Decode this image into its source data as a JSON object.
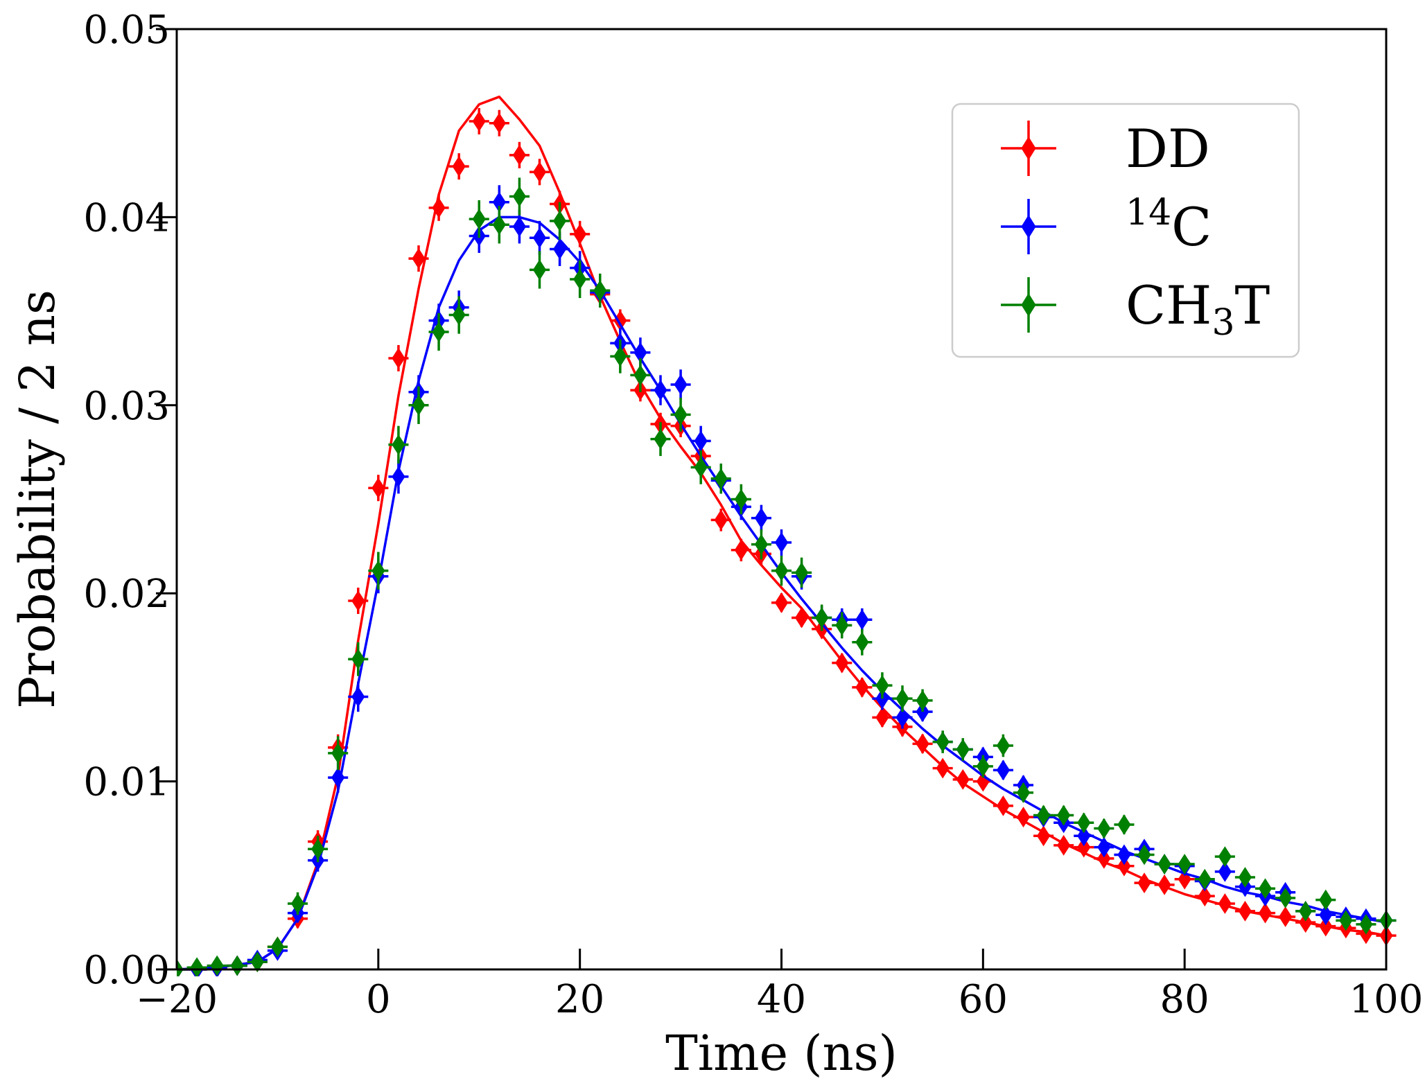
{
  "chart_data": {
    "type": "scatter",
    "title": "",
    "xlabel": "Time (ns)",
    "ylabel": "Probability / 2 ns",
    "xlim": [
      -20,
      100
    ],
    "ylim": [
      0.0,
      0.05
    ],
    "xticks": [
      "−20",
      "0",
      "20",
      "40",
      "60",
      "80",
      "100"
    ],
    "xtick_values": [
      -20,
      0,
      20,
      40,
      60,
      80,
      100
    ],
    "yticks": [
      "0.00",
      "0.01",
      "0.02",
      "0.03",
      "0.04",
      "0.05"
    ],
    "ytick_values": [
      0.0,
      0.01,
      0.02,
      0.03,
      0.04,
      0.05
    ],
    "grid": false,
    "legend_position": "upper-right",
    "marker": "thin-diamond",
    "series": [
      {
        "name": "DD",
        "legend_label": {
          "base": "DD",
          "sup": "",
          "sub": "",
          "post": ""
        },
        "color": "#ff0000",
        "x": [
          -20,
          -18,
          -16,
          -14,
          -12,
          -10,
          -8,
          -6,
          -4,
          -2,
          0,
          2,
          4,
          6,
          8,
          10,
          12,
          14,
          16,
          18,
          20,
          22,
          24,
          26,
          28,
          30,
          32,
          34,
          36,
          38,
          40,
          42,
          44,
          46,
          48,
          50,
          52,
          54,
          56,
          58,
          60,
          62,
          64,
          66,
          68,
          70,
          72,
          74,
          76,
          78,
          80,
          82,
          84,
          86,
          88,
          90,
          92,
          94,
          96,
          98,
          100
        ],
        "y": [
          0.0,
          0.0,
          0.0001,
          0.0002,
          0.0004,
          0.0012,
          0.0027,
          0.0068,
          0.0118,
          0.0196,
          0.0256,
          0.0325,
          0.0378,
          0.0405,
          0.0427,
          0.0451,
          0.045,
          0.0433,
          0.0424,
          0.0407,
          0.0391,
          0.0359,
          0.0345,
          0.0308,
          0.029,
          0.0289,
          0.0273,
          0.0239,
          0.0223,
          0.0221,
          0.0195,
          0.0187,
          0.0181,
          0.0163,
          0.015,
          0.0134,
          0.0129,
          0.012,
          0.0107,
          0.0101,
          0.01,
          0.0087,
          0.0081,
          0.0071,
          0.0066,
          0.0065,
          0.0059,
          0.0055,
          0.0046,
          0.0045,
          0.0048,
          0.0039,
          0.0035,
          0.0031,
          0.003,
          0.0028,
          0.0025,
          0.0023,
          0.0022,
          0.0019,
          0.0018
        ],
        "yerr": [
          0.0002,
          0.0002,
          0.0002,
          0.0002,
          0.0003,
          0.0004,
          0.0005,
          0.0006,
          0.0007,
          0.0007,
          0.0007,
          0.0007,
          0.0007,
          0.0007,
          0.0007,
          0.0007,
          0.0007,
          0.0007,
          0.0007,
          0.0007,
          0.0007,
          0.0007,
          0.0006,
          0.0006,
          0.0006,
          0.0006,
          0.0006,
          0.0006,
          0.0006,
          0.0006,
          0.0005,
          0.0005,
          0.0005,
          0.0005,
          0.0005,
          0.0005,
          0.0005,
          0.0005,
          0.0004,
          0.0004,
          0.0004,
          0.0004,
          0.0004,
          0.0004,
          0.0004,
          0.0004,
          0.0004,
          0.0004,
          0.0003,
          0.0003,
          0.0003,
          0.0003,
          0.0003,
          0.0003,
          0.0003,
          0.0003,
          0.0003,
          0.0003,
          0.0003,
          0.0003,
          0.0003
        ],
        "fit": {
          "x": [
            -20,
            -16,
            -12,
            -10,
            -8,
            -6,
            -4,
            -2,
            0,
            2,
            4,
            6,
            8,
            10,
            12,
            14,
            16,
            18,
            20,
            22,
            24,
            26,
            28,
            30,
            32,
            34,
            36,
            38,
            40,
            42,
            44,
            46,
            48,
            50,
            52,
            54,
            56,
            58,
            60,
            62,
            64,
            66,
            68,
            70,
            72,
            74,
            76,
            78,
            80,
            82,
            84,
            86,
            88,
            90,
            92,
            94,
            96,
            98,
            100
          ],
          "y": [
            0.0,
            0.0001,
            0.0004,
            0.0011,
            0.0027,
            0.0057,
            0.0103,
            0.0175,
            0.0237,
            0.0305,
            0.0362,
            0.0412,
            0.0446,
            0.046,
            0.0464,
            0.0452,
            0.0438,
            0.0413,
            0.0386,
            0.0358,
            0.0334,
            0.0311,
            0.0293,
            0.0278,
            0.0264,
            0.0247,
            0.0228,
            0.0215,
            0.0203,
            0.0192,
            0.0178,
            0.0164,
            0.0151,
            0.0139,
            0.0128,
            0.0118,
            0.0108,
            0.0099,
            0.0092,
            0.0085,
            0.0079,
            0.0073,
            0.0067,
            0.0062,
            0.0057,
            0.0053,
            0.0048,
            0.0044,
            0.004,
            0.0037,
            0.0034,
            0.0031,
            0.0029,
            0.0027,
            0.0025,
            0.0023,
            0.0021,
            0.002,
            0.0018
          ]
        }
      },
      {
        "name": "14C",
        "legend_label": {
          "base": "",
          "sup": "14",
          "sub": "",
          "post": "C"
        },
        "color": "#0000ff",
        "x": [
          -20,
          -18,
          -16,
          -14,
          -12,
          -10,
          -8,
          -6,
          -4,
          -2,
          0,
          2,
          4,
          6,
          8,
          10,
          12,
          14,
          16,
          18,
          20,
          22,
          24,
          26,
          28,
          30,
          32,
          34,
          36,
          38,
          40,
          42,
          44,
          46,
          48,
          50,
          52,
          54,
          56,
          58,
          60,
          62,
          64,
          66,
          68,
          70,
          72,
          74,
          76,
          78,
          80,
          82,
          84,
          86,
          88,
          90,
          92,
          94,
          96,
          98,
          100
        ],
        "y": [
          0.0,
          0.0,
          0.0001,
          0.0002,
          0.0005,
          0.001,
          0.003,
          0.0058,
          0.0102,
          0.0145,
          0.0209,
          0.0262,
          0.0307,
          0.0345,
          0.0352,
          0.039,
          0.0408,
          0.0395,
          0.0389,
          0.0383,
          0.0373,
          0.036,
          0.0333,
          0.0328,
          0.0308,
          0.0311,
          0.0281,
          0.026,
          0.0246,
          0.024,
          0.0227,
          0.0209,
          0.0187,
          0.0186,
          0.0186,
          0.0144,
          0.0134,
          0.0137,
          0.0121,
          0.0117,
          0.0113,
          0.0106,
          0.0098,
          0.0081,
          0.0078,
          0.0071,
          0.0065,
          0.0061,
          0.0064,
          0.0056,
          0.0055,
          0.0047,
          0.0052,
          0.0044,
          0.0039,
          0.0041,
          0.0031,
          0.0029,
          0.0028,
          0.0027,
          0.0026
        ],
        "yerr": [
          0.0002,
          0.0002,
          0.0002,
          0.0002,
          0.0003,
          0.0004,
          0.0005,
          0.0006,
          0.0008,
          0.0008,
          0.0009,
          0.0009,
          0.0009,
          0.0009,
          0.0009,
          0.0009,
          0.0009,
          0.0009,
          0.0009,
          0.0009,
          0.0009,
          0.0008,
          0.0008,
          0.0008,
          0.0008,
          0.0008,
          0.0008,
          0.0007,
          0.0007,
          0.0007,
          0.0007,
          0.0007,
          0.0006,
          0.0006,
          0.0006,
          0.0006,
          0.0006,
          0.0005,
          0.0005,
          0.0005,
          0.0005,
          0.0005,
          0.0005,
          0.0004,
          0.0004,
          0.0004,
          0.0004,
          0.0004,
          0.0004,
          0.0004,
          0.0004,
          0.0003,
          0.0003,
          0.0003,
          0.0003,
          0.0003,
          0.0003,
          0.0003,
          0.0003,
          0.0003,
          0.0003
        ],
        "fit": {
          "x": [
            -20,
            -16,
            -12,
            -10,
            -8,
            -6,
            -4,
            -2,
            0,
            2,
            4,
            6,
            8,
            10,
            12,
            14,
            16,
            18,
            20,
            22,
            24,
            26,
            28,
            30,
            32,
            34,
            36,
            38,
            40,
            42,
            44,
            46,
            48,
            50,
            52,
            54,
            56,
            58,
            60,
            62,
            64,
            66,
            68,
            70,
            72,
            74,
            76,
            78,
            80,
            82,
            84,
            86,
            88,
            90,
            92,
            94,
            96,
            98,
            100
          ],
          "y": [
            0.0,
            0.0001,
            0.0004,
            0.0011,
            0.0027,
            0.0055,
            0.0095,
            0.0152,
            0.0206,
            0.0265,
            0.0313,
            0.0352,
            0.0377,
            0.0393,
            0.04,
            0.04,
            0.0397,
            0.0388,
            0.0376,
            0.0361,
            0.0343,
            0.0325,
            0.0308,
            0.029,
            0.0273,
            0.0257,
            0.0241,
            0.0226,
            0.0211,
            0.0197,
            0.0184,
            0.0171,
            0.0159,
            0.0148,
            0.0138,
            0.0128,
            0.0119,
            0.0111,
            0.0103,
            0.0096,
            0.009,
            0.0084,
            0.0078,
            0.0073,
            0.0068,
            0.0063,
            0.0059,
            0.0055,
            0.0051,
            0.0048,
            0.0044,
            0.0041,
            0.0039,
            0.0036,
            0.0034,
            0.0031,
            0.0029,
            0.0027,
            0.0025
          ]
        }
      },
      {
        "name": "CH3T",
        "legend_label": {
          "base": "CH",
          "sup": "",
          "sub": "3",
          "post": "T"
        },
        "color": "#008000",
        "x": [
          -20,
          -18,
          -16,
          -14,
          -12,
          -10,
          -8,
          -6,
          -4,
          -2,
          0,
          2,
          4,
          6,
          8,
          10,
          12,
          14,
          16,
          18,
          20,
          22,
          24,
          26,
          28,
          30,
          32,
          34,
          36,
          38,
          40,
          42,
          44,
          46,
          48,
          50,
          52,
          54,
          56,
          58,
          60,
          62,
          64,
          66,
          68,
          70,
          72,
          74,
          76,
          78,
          80,
          82,
          84,
          86,
          88,
          90,
          92,
          94,
          96,
          98,
          100
        ],
        "y": [
          0.0,
          0.0001,
          0.0002,
          0.0002,
          0.0004,
          0.0012,
          0.0035,
          0.0064,
          0.0115,
          0.0165,
          0.0212,
          0.0279,
          0.03,
          0.0339,
          0.0348,
          0.0399,
          0.0396,
          0.0411,
          0.0372,
          0.0398,
          0.0367,
          0.0361,
          0.0326,
          0.0316,
          0.0282,
          0.0295,
          0.0267,
          0.0261,
          0.025,
          0.0226,
          0.0212,
          0.0211,
          0.0187,
          0.0183,
          0.0174,
          0.0151,
          0.0144,
          0.0143,
          0.0121,
          0.0117,
          0.0108,
          0.0119,
          0.0094,
          0.0082,
          0.0082,
          0.0078,
          0.0075,
          0.0077,
          0.0061,
          0.0056,
          0.0056,
          0.0048,
          0.006,
          0.0049,
          0.0043,
          0.0038,
          0.0031,
          0.0037,
          0.0026,
          0.0024,
          0.0026
        ],
        "yerr": [
          0.0002,
          0.0002,
          0.0002,
          0.0002,
          0.0003,
          0.0004,
          0.0006,
          0.0007,
          0.0009,
          0.0009,
          0.001,
          0.001,
          0.001,
          0.001,
          0.001,
          0.001,
          0.001,
          0.001,
          0.001,
          0.001,
          0.001,
          0.0009,
          0.0009,
          0.0009,
          0.0009,
          0.0009,
          0.0009,
          0.0008,
          0.0008,
          0.0008,
          0.0008,
          0.0008,
          0.0007,
          0.0007,
          0.0007,
          0.0007,
          0.0007,
          0.0006,
          0.0006,
          0.0006,
          0.0006,
          0.0006,
          0.0005,
          0.0005,
          0.0005,
          0.0005,
          0.0005,
          0.0005,
          0.0004,
          0.0004,
          0.0004,
          0.0004,
          0.0004,
          0.0004,
          0.0004,
          0.0004,
          0.0004,
          0.0004,
          0.0004,
          0.0004,
          0.0004
        ]
      }
    ]
  }
}
